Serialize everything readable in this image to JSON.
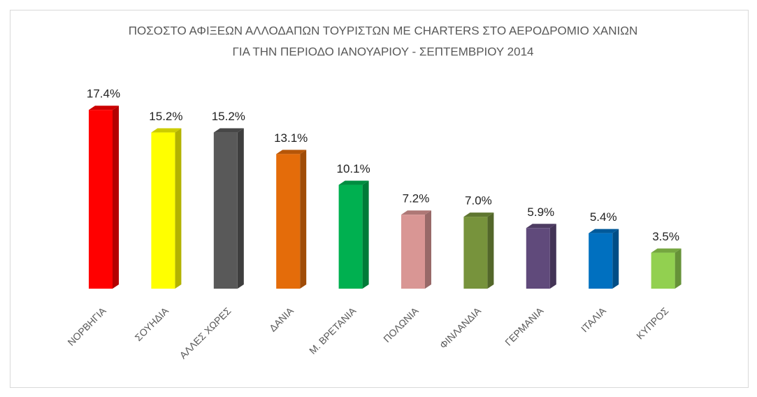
{
  "chart_data": {
    "type": "bar",
    "title": [
      "ΠΟΣΟΣΤΟ ΑΦΙΞΕΩΝ ΑΛΛΟΔΑΠΩΝ ΤΟΥΡΙΣΤΩΝ ΜΕ CHARTERS ΣΤΟ ΑΕΡΟΔΡΟΜΙΟ ΧΑΝΙΩΝ",
      "ΓΙΑ ΤΗΝ ΠΕΡΙΟΔΟ ΙΑΝΟΥΑΡΙΟΥ - ΣΕΠΤΕΜΒΡΙΟΥ 2014"
    ],
    "categories": [
      "ΝΟΡΒΗΓΙΑ",
      "ΣΟΥΗΔΙΑ",
      "ΑΛΛΕΣ ΧΩΡΕΣ",
      "ΔΑΝΙΑ",
      "Μ. ΒΡΕΤΑΝΙΑ",
      "ΠΟΛΩΝΙΑ",
      "ΦΙΝΛΑΝΔΙΑ",
      "ΓΕΡΜΑΝΙΑ",
      "ΙΤΑΛΙΑ",
      "ΚΥΠΡΟΣ"
    ],
    "values": [
      17.4,
      15.2,
      15.2,
      13.1,
      10.1,
      7.2,
      7.0,
      5.9,
      5.4,
      3.5
    ],
    "value_labels": [
      "17.4%",
      "15.2%",
      "15.2%",
      "13.1%",
      "10.1%",
      "7.2%",
      "7.0%",
      "5.9%",
      "5.4%",
      "3.5%"
    ],
    "colors": [
      "#ff0000",
      "#ffff00",
      "#595959",
      "#e46c0a",
      "#00b050",
      "#d99694",
      "#77933c",
      "#604a7b",
      "#0070c0",
      "#92d050"
    ]
  }
}
